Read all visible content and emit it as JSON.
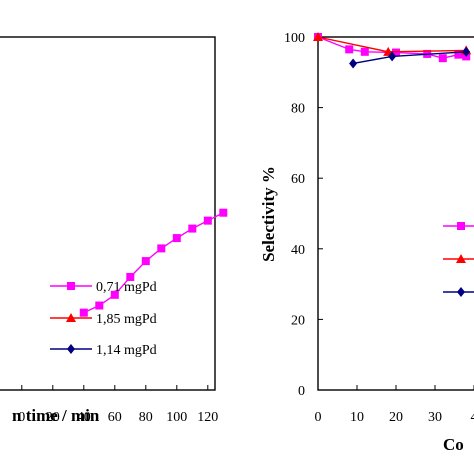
{
  "chart_data": [
    {
      "type": "line",
      "xlabel": "n time / min",
      "ylabel": "",
      "xlim": [
        -5,
        130
      ],
      "x_ticks": [
        "0",
        "20",
        "40",
        "60",
        "80",
        "100",
        "120"
      ],
      "grid": false,
      "legend": "bottom-right",
      "legend_entries": [
        "0,71 mgPd",
        "1,85 mgPd",
        "1,14 mgPd"
      ],
      "series": [
        {
          "name": "0,71 mgPd",
          "color": "#ff00ff",
          "marker": "square",
          "x": [
            40,
            50,
            60,
            70,
            80,
            90,
            100,
            110,
            120,
            130
          ],
          "y": [
            0.195,
            0.213,
            0.24,
            0.285,
            0.325,
            0.357,
            0.383,
            0.407,
            0.427,
            0.447
          ]
        },
        {
          "name": "1,85 mgPd",
          "color": "#ff0000",
          "marker": "triangle",
          "x": [],
          "y": []
        },
        {
          "name": "1,14 mgPd",
          "color": "#000080",
          "marker": "diamond",
          "x": [],
          "y": []
        }
      ]
    },
    {
      "type": "line",
      "xlabel": "Co",
      "ylabel": "Selectivity %",
      "ylim": [
        0,
        100
      ],
      "y_ticks": [
        "0",
        "20",
        "40",
        "60",
        "80",
        "100"
      ],
      "x_ticks": [
        "0",
        "10",
        "20",
        "30",
        "4"
      ],
      "grid": false,
      "series": [
        {
          "name": "0,71 mgPd",
          "color": "#ff00ff",
          "marker": "square",
          "x": [
            0,
            8,
            12,
            20,
            28,
            32,
            36,
            38
          ],
          "y": [
            100,
            96.5,
            95.8,
            95.6,
            95.2,
            94,
            95,
            94.5
          ]
        },
        {
          "name": "1,85 mgPd",
          "color": "#ff0000",
          "marker": "triangle",
          "x": [
            0,
            18,
            38
          ],
          "y": [
            100,
            95.8,
            96.2
          ]
        },
        {
          "name": "1,14 mgPd",
          "color": "#000080",
          "marker": "diamond",
          "x": [
            9,
            19,
            38
          ],
          "y": [
            92.5,
            94.5,
            95.8
          ]
        }
      ]
    }
  ]
}
